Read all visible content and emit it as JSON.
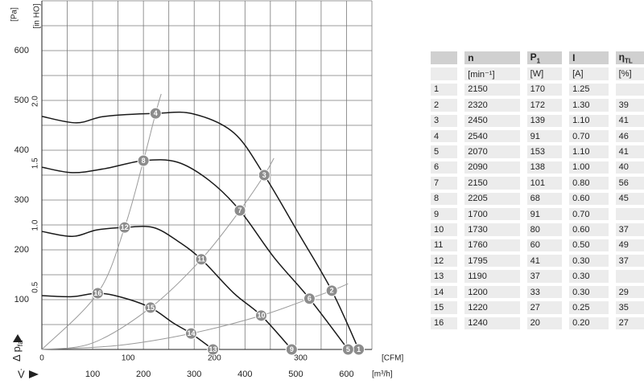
{
  "chart_data": {
    "type": "line",
    "y_label": {
      "text": "Δ p",
      "sub": "fa"
    },
    "y_unit": "[Pa]",
    "y2_unit": "[in HO]",
    "x_label": "V̇",
    "x_unit": "[m³/h]",
    "x2_unit": "[CFM]",
    "xlim": [
      0,
      650
    ],
    "xticks": [
      100,
      200,
      300,
      400,
      500,
      600
    ],
    "x2lim": [
      0,
      382.6
    ],
    "x2ticks": [
      0,
      100,
      200,
      300
    ],
    "ylim": [
      0,
      700
    ],
    "yticks": [
      100,
      200,
      300,
      400,
      500,
      600
    ],
    "y2lim": [
      0,
      2.81
    ],
    "y2ticks": [
      0.5,
      {
        "value": 1,
        "label": "1.0"
      },
      1.5,
      {
        "value": 2,
        "label": "2.0"
      }
    ],
    "xgrid": [
      50,
      100,
      150,
      200,
      250,
      300,
      350,
      400,
      450,
      500,
      550,
      600,
      650
    ],
    "ygrid": [
      50,
      100,
      150,
      200,
      250,
      300,
      350,
      400,
      450,
      500,
      550,
      600,
      650,
      700
    ],
    "series": [
      {
        "color": "#1a1a1a",
        "x": [
          0,
          68,
          124,
          224,
          298,
          378,
          438,
          505,
          571,
          624
        ],
        "values": [
          468,
          455,
          468,
          474,
          473,
          435,
          350,
          234,
          118,
          0
        ]
      },
      {
        "color": "#1a1a1a",
        "x": [
          0,
          60,
          124,
          200,
          267,
          330,
          390,
          457,
          527,
          603
        ],
        "values": [
          366,
          355,
          363,
          379,
          376,
          339,
          279,
          185,
          102,
          0
        ]
      },
      {
        "color": "#1a1a1a",
        "x": [
          0,
          60,
          108,
          163,
          219,
          267,
          314,
          378,
          432,
          492
        ],
        "values": [
          237,
          227,
          240,
          245,
          245,
          218,
          181,
          113,
          68,
          0
        ]
      },
      {
        "color": "#1a1a1a",
        "x": [
          0,
          60,
          110,
          156,
          214,
          259,
          294,
          337
        ],
        "values": [
          108,
          106,
          113,
          105,
          84,
          53,
          32,
          0
        ]
      },
      {
        "color": "#9a9a9a",
        "x": [
          0,
          110,
          163,
          200,
          224,
          235
        ],
        "values": [
          0,
          113,
          245,
          379,
          474,
          513
        ]
      },
      {
        "color": "#9a9a9a",
        "x": [
          0,
          100,
          214,
          314,
          390,
          438,
          457
        ],
        "values": [
          0,
          13,
          84,
          181,
          279,
          350,
          384
        ]
      },
      {
        "color": "#9a9a9a",
        "x": [
          0,
          150,
          294,
          432,
          527,
          571,
          603
        ],
        "values": [
          0,
          8,
          32,
          68,
          102,
          118,
          132
        ]
      }
    ],
    "points": {
      "color": "#8c8c8c",
      "labels": [
        1,
        2,
        3,
        4,
        5,
        6,
        7,
        8,
        9,
        10,
        11,
        12,
        13,
        14,
        15,
        16
      ],
      "x": [
        624,
        571,
        438,
        224,
        603,
        527,
        390,
        200,
        492,
        432,
        314,
        163,
        337,
        294,
        214,
        110
      ],
      "values": [
        0,
        118,
        350,
        474,
        0,
        102,
        279,
        379,
        0,
        68,
        181,
        245,
        0,
        32,
        84,
        113
      ]
    }
  },
  "table": {
    "headers": [
      {
        "text": "n"
      },
      {
        "text": "P",
        "sub": "1"
      },
      {
        "text": "I"
      },
      {
        "text": "η",
        "sub": "TL"
      }
    ],
    "units": [
      "[min⁻¹]",
      "[W]",
      "[A]",
      "[%]"
    ],
    "rows": [
      [
        "1",
        "2150",
        "170",
        "1.25",
        null
      ],
      [
        "2",
        "2320",
        "172",
        "1.30",
        "39"
      ],
      [
        "3",
        "2450",
        "139",
        "1.10",
        "41"
      ],
      [
        "4",
        "2540",
        "91",
        "0.70",
        "46"
      ],
      [
        "5",
        "2070",
        "153",
        "1.10",
        "41"
      ],
      [
        "6",
        "2090",
        "138",
        "1.00",
        "40"
      ],
      [
        "7",
        "2150",
        "101",
        "0.80",
        "56"
      ],
      [
        "8",
        "2205",
        "68",
        "0.60",
        "45"
      ],
      [
        "9",
        "1700",
        "91",
        "0.70",
        null
      ],
      [
        "10",
        "1730",
        "80",
        "0.60",
        "37"
      ],
      [
        "11",
        "1760",
        "60",
        "0.50",
        "49"
      ],
      [
        "12",
        "1795",
        "41",
        "0.30",
        "37"
      ],
      [
        "13",
        "1190",
        "37",
        "0.30",
        null
      ],
      [
        "14",
        "1200",
        "33",
        "0.30",
        "29"
      ],
      [
        "15",
        "1220",
        "27",
        "0.25",
        "35"
      ],
      [
        "16",
        "1240",
        "20",
        "0.20",
        "27"
      ]
    ]
  }
}
